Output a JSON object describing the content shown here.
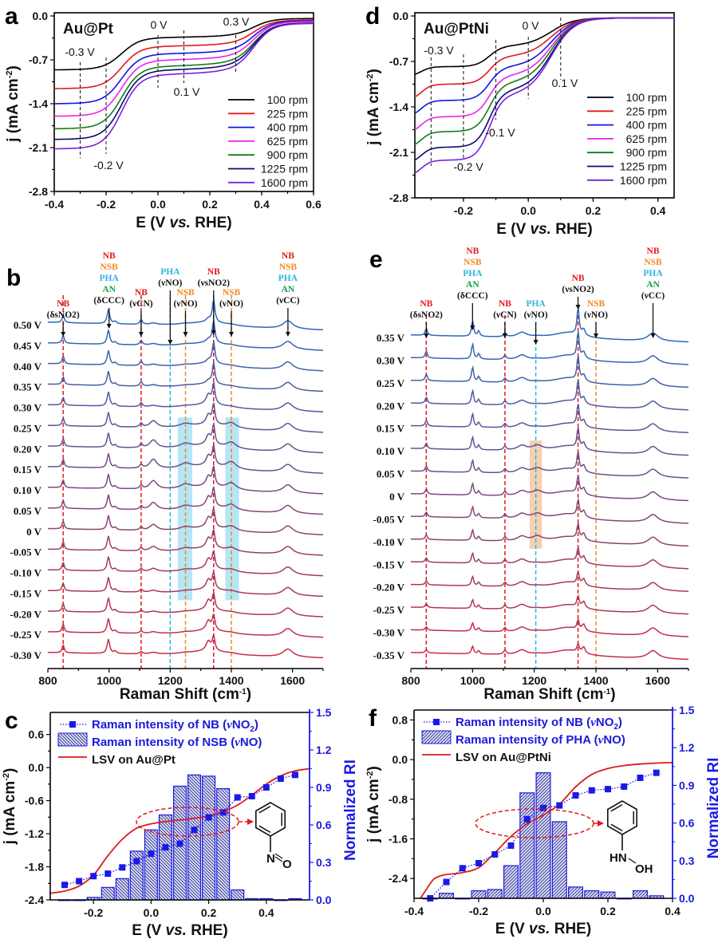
{
  "panels": {
    "a": {
      "label": "a",
      "sample": "Au@Pt"
    },
    "b": {
      "label": "b"
    },
    "c": {
      "label": "c"
    },
    "d": {
      "label": "d",
      "sample": "Au@PtNi"
    },
    "e": {
      "label": "e"
    },
    "f": {
      "label": "f"
    }
  },
  "chart_data": [
    {
      "id": "a",
      "type": "line",
      "title": "Au@Pt",
      "xlabel": "E (V vs. RHE)",
      "ylabel": "j (mA cm-2)",
      "xlim": [
        -0.4,
        0.6
      ],
      "ylim": [
        -2.8,
        0.0
      ],
      "xticks": [
        "-0.4",
        "-0.2",
        "0.0",
        "0.2",
        "0.4",
        "0.6"
      ],
      "xtick_values": [
        -0.4,
        -0.2,
        0.0,
        0.2,
        0.4,
        0.6
      ],
      "yticks": [
        "0.0",
        "-0.7",
        "-1.4",
        "-2.1",
        "-2.8"
      ],
      "ytick_values": [
        0.0,
        -0.7,
        -1.4,
        -2.1,
        -2.8
      ],
      "legend_position": "bottom-right",
      "annotations": [
        {
          "text": "-0.3 V",
          "x": -0.3
        },
        {
          "text": "-0.2 V",
          "x": -0.2
        },
        {
          "text": "0 V",
          "x": 0.0
        },
        {
          "text": "0.1 V",
          "x": 0.1
        },
        {
          "text": "0.3 V",
          "x": 0.3
        }
      ],
      "series": [
        {
          "name": "100 rpm",
          "color": "#000000",
          "plateau1": -0.86,
          "plateau2": -0.36,
          "plateau3": -0.3
        },
        {
          "name": "225 rpm",
          "color": "#e0191f",
          "plateau1": -1.16,
          "plateau2": -0.5,
          "plateau3": -0.4
        },
        {
          "name": "400 rpm",
          "color": "#1414e6",
          "plateau1": -1.4,
          "plateau2": -0.62,
          "plateau3": -0.5
        },
        {
          "name": "625 rpm",
          "color": "#ee22ee",
          "plateau1": -1.6,
          "plateau2": -0.72,
          "plateau3": -0.58
        },
        {
          "name": "900 rpm",
          "color": "#147d14",
          "plateau1": -1.8,
          "plateau2": -0.82,
          "plateau3": -0.64
        },
        {
          "name": "1225 rpm",
          "color": "#0a0a6e",
          "plateau1": -1.97,
          "plateau2": -0.88,
          "plateau3": -0.7
        },
        {
          "name": "1600 rpm",
          "color": "#7a1fe0",
          "plateau1": -2.12,
          "plateau2": -0.95,
          "plateau3": -0.76
        }
      ]
    },
    {
      "id": "d",
      "type": "line",
      "title": "Au@PtNi",
      "xlabel": "E (V vs. RHE)",
      "ylabel": "j (mA cm-2)",
      "xlim": [
        -0.35,
        0.45
      ],
      "ylim": [
        -2.8,
        0.0
      ],
      "xticks": [
        "-0.2",
        "0.0",
        "0.2",
        "0.4"
      ],
      "xtick_values": [
        -0.2,
        0.0,
        0.2,
        0.4
      ],
      "yticks": [
        "0.0",
        "-0.7",
        "-1.4",
        "-2.1",
        "-2.8"
      ],
      "ytick_values": [
        0.0,
        -0.7,
        -1.4,
        -2.1,
        -2.8
      ],
      "legend_position": "bottom-right",
      "annotations": [
        {
          "text": "-0.3 V",
          "x": -0.3
        },
        {
          "text": "-0.2 V",
          "x": -0.2
        },
        {
          "text": "-0.1 V",
          "x": -0.1
        },
        {
          "text": "0 V",
          "x": 0.0
        },
        {
          "text": "0.1 V",
          "x": 0.1
        }
      ],
      "series": [
        {
          "name": "100 rpm",
          "color": "#000000",
          "plateau1": -0.78,
          "plateau2": -0.46
        },
        {
          "name": "225 rpm",
          "color": "#e0191f",
          "plateau1": -1.05,
          "plateau2": -0.62
        },
        {
          "name": "400 rpm",
          "color": "#1414e6",
          "plateau1": -1.3,
          "plateau2": -0.78
        },
        {
          "name": "625 rpm",
          "color": "#ee22ee",
          "plateau1": -1.55,
          "plateau2": -0.92
        },
        {
          "name": "900 rpm",
          "color": "#147d14",
          "plateau1": -1.78,
          "plateau2": -1.03
        },
        {
          "name": "1225 rpm",
          "color": "#0a0a6e",
          "plateau1": -2.02,
          "plateau2": -1.15
        },
        {
          "name": "1600 rpm",
          "color": "#7a1fe0",
          "plateau1": -2.22,
          "plateau2": -1.22
        }
      ]
    },
    {
      "id": "b",
      "type": "line",
      "title": "",
      "xlabel": "Raman Shift (cm-1)",
      "ylabel": "",
      "xlim": [
        800,
        1700
      ],
      "xticks": [
        "800",
        "1000",
        "1200",
        "1400",
        "1600"
      ],
      "xtick_values": [
        800,
        1000,
        1200,
        1400,
        1600
      ],
      "potentials": [
        "0.50 V",
        "0.45 V",
        "0.40 V",
        "0.35 V",
        "0.30 V",
        "0.25 V",
        "0.20 V",
        "0.15 V",
        "0.10 V",
        "0.05 V",
        "0 V",
        "-0.05 V",
        "-0.10 V",
        "-0.15 V",
        "-0.20 V",
        "-0.25 V",
        "-0.30 V"
      ],
      "peak_markers": [
        {
          "x": 850,
          "labels": [
            {
              "t": "NB",
              "c": "red"
            }
          ],
          "mode": "(δsNO2)",
          "line": "red"
        },
        {
          "x": 1000,
          "labels": [
            {
              "t": "NB",
              "c": "red"
            },
            {
              "t": "NSB",
              "c": "orange"
            },
            {
              "t": "PHA",
              "c": "cyan"
            },
            {
              "t": "AN",
              "c": "green"
            }
          ],
          "mode": "(δCCC)",
          "line": ""
        },
        {
          "x": 1105,
          "labels": [
            {
              "t": "NB",
              "c": "red"
            }
          ],
          "mode": "(νCN)",
          "line": "red"
        },
        {
          "x": 1200,
          "labels": [
            {
              "t": "PHA",
              "c": "cyan"
            }
          ],
          "mode": "(νNO)",
          "line": "cyan"
        },
        {
          "x": 1250,
          "labels": [
            {
              "t": "NSB",
              "c": "orange"
            }
          ],
          "mode": "(νNO)",
          "line": "orange"
        },
        {
          "x": 1342,
          "labels": [
            {
              "t": "NB",
              "c": "red"
            }
          ],
          "mode": "(νsNO2)",
          "line": "red"
        },
        {
          "x": 1400,
          "labels": [
            {
              "t": "NSB",
              "c": "orange"
            }
          ],
          "mode": "(νNO)",
          "line": "orange"
        },
        {
          "x": 1585,
          "labels": [
            {
              "t": "NB",
              "c": "red"
            },
            {
              "t": "NSB",
              "c": "orange"
            },
            {
              "t": "PHA",
              "c": "cyan"
            },
            {
              "t": "AN",
              "c": "green"
            }
          ],
          "mode": "(νCC)",
          "line": ""
        }
      ],
      "highlights": [
        {
          "x0": 1225,
          "x1": 1272,
          "from": "0.25 V",
          "to": "-0.15 V",
          "color": "#a8e2f5"
        },
        {
          "x0": 1380,
          "x1": 1425,
          "from": "0.25 V",
          "to": "-0.15 V",
          "color": "#a8e2f5"
        }
      ]
    },
    {
      "id": "e",
      "type": "line",
      "title": "",
      "xlabel": "Raman Shift (cm-1)",
      "ylabel": "",
      "xlim": [
        800,
        1700
      ],
      "xticks": [
        "800",
        "1000",
        "1200",
        "1400",
        "1600"
      ],
      "xtick_values": [
        800,
        1000,
        1200,
        1400,
        1600
      ],
      "potentials": [
        "0.35 V",
        "0.30 V",
        "0.25 V",
        "0.20 V",
        "0.15 V",
        "0.10 V",
        "0.05 V",
        "0 V",
        "-0.05 V",
        "-0.10 V",
        "-0.15 V",
        "-0.20 V",
        "-0.25 V",
        "-0.30 V",
        "-0.35 V"
      ],
      "peak_markers": [
        {
          "x": 850,
          "labels": [
            {
              "t": "NB",
              "c": "red"
            }
          ],
          "mode": "(δsNO2)",
          "line": "red"
        },
        {
          "x": 1000,
          "labels": [
            {
              "t": "NB",
              "c": "red"
            },
            {
              "t": "NSB",
              "c": "orange"
            },
            {
              "t": "PHA",
              "c": "cyan"
            },
            {
              "t": "AN",
              "c": "green"
            }
          ],
          "mode": "(δCCC)",
          "line": ""
        },
        {
          "x": 1105,
          "labels": [
            {
              "t": "NB",
              "c": "red"
            }
          ],
          "mode": "(νCN)",
          "line": "red"
        },
        {
          "x": 1205,
          "labels": [
            {
              "t": "PHA",
              "c": "cyan"
            }
          ],
          "mode": "(νNO)",
          "line": "cyan"
        },
        {
          "x": 1342,
          "labels": [
            {
              "t": "NB",
              "c": "red"
            }
          ],
          "mode": "(νsNO2)",
          "line": "red"
        },
        {
          "x": 1400,
          "labels": [
            {
              "t": "NSB",
              "c": "orange"
            }
          ],
          "mode": "(νNO)",
          "line": "orange"
        },
        {
          "x": 1585,
          "labels": [
            {
              "t": "NB",
              "c": "red"
            },
            {
              "t": "NSB",
              "c": "orange"
            },
            {
              "t": "PHA",
              "c": "cyan"
            },
            {
              "t": "AN",
              "c": "green"
            }
          ],
          "mode": "(νCC)",
          "line": ""
        }
      ],
      "highlights": [
        {
          "x0": 1185,
          "x1": 1225,
          "from": "0.10 V",
          "to": "-0.10 V",
          "color": "#f5c8a5"
        }
      ]
    },
    {
      "id": "c",
      "type": "bar",
      "title": "",
      "xlabel": "E (V vs. RHE)",
      "ylabel": "j (mA cm-2)",
      "y2label": "Normalized RI",
      "xlim": [
        -0.35,
        0.55
      ],
      "ylim": [
        -2.4,
        1.0
      ],
      "y2lim": [
        0.0,
        1.5
      ],
      "xticks": [
        "-0.2",
        "0.0",
        "0.2",
        "0.4"
      ],
      "xtick_values": [
        -0.2,
        0.0,
        0.2,
        0.4
      ],
      "yticks": [
        "0.6",
        "0.0",
        "-0.6",
        "-1.2",
        "-1.8",
        "-2.4"
      ],
      "ytick_values": [
        0.6,
        0.0,
        -0.6,
        -1.2,
        -1.8,
        -2.4
      ],
      "y2ticks": [
        "0.0",
        "0.3",
        "0.6",
        "0.9",
        "1.2",
        "1.5"
      ],
      "y2tick_values": [
        0.0,
        0.3,
        0.6,
        0.9,
        1.2,
        1.5
      ],
      "legend": [
        "Raman intensity of NB (νNO2)",
        "Raman intensity of NSB (νNO)",
        "LSV on Au@Pt"
      ],
      "legend_position": "top-left",
      "molecule": "nitrosobenzene",
      "molecule_label": "N=O",
      "x": [
        -0.3,
        -0.25,
        -0.2,
        -0.15,
        -0.1,
        -0.05,
        0.0,
        0.05,
        0.1,
        0.15,
        0.2,
        0.25,
        0.3,
        0.35,
        0.4,
        0.45,
        0.5
      ],
      "series": [
        {
          "name": "Raman intensity of NB (νNO2)",
          "kind": "dotted-line-square",
          "axis": "right",
          "color": "#1a1ae6",
          "values": [
            0.12,
            0.15,
            0.19,
            0.21,
            0.26,
            0.31,
            0.37,
            0.42,
            0.45,
            0.56,
            0.66,
            0.7,
            0.82,
            0.83,
            0.9,
            0.97,
            1.0
          ]
        },
        {
          "name": "Raman intensity of NSB (νNO)",
          "kind": "hatched-bar",
          "axis": "right",
          "color": "#1a1ae6",
          "values": [
            0.0,
            0.0,
            0.02,
            0.1,
            0.17,
            0.39,
            0.56,
            0.68,
            0.91,
            1.0,
            0.99,
            0.89,
            0.08,
            0.01,
            0.01,
            0.0,
            0.01
          ]
        },
        {
          "name": "LSV on Au@Pt",
          "kind": "line",
          "axis": "left",
          "color": "#d81e1e",
          "x": [
            -0.35,
            -0.3,
            -0.25,
            -0.2,
            -0.15,
            -0.1,
            -0.05,
            0.0,
            0.05,
            0.1,
            0.15,
            0.2,
            0.25,
            0.3,
            0.35,
            0.4,
            0.45,
            0.5,
            0.55
          ],
          "values": [
            -2.28,
            -2.24,
            -2.15,
            -1.95,
            -1.6,
            -1.3,
            -1.1,
            -1.02,
            -0.98,
            -0.95,
            -0.92,
            -0.88,
            -0.8,
            -0.68,
            -0.5,
            -0.3,
            -0.15,
            -0.06,
            -0.02
          ]
        }
      ]
    },
    {
      "id": "f",
      "type": "bar",
      "title": "",
      "xlabel": "E (V vs. RHE)",
      "ylabel": "j (mA cm-2)",
      "y2label": "Normalized RI",
      "xlim": [
        -0.4,
        0.4
      ],
      "ylim": [
        -2.8,
        1.0
      ],
      "y2lim": [
        0.0,
        1.5
      ],
      "xticks": [
        "-0.4",
        "-0.2",
        "0.0",
        "0.2",
        "0.4"
      ],
      "xtick_values": [
        -0.4,
        -0.2,
        0.0,
        0.2,
        0.4
      ],
      "yticks": [
        "0.8",
        "0.0",
        "-0.8",
        "-1.6",
        "-2.4"
      ],
      "ytick_values": [
        0.8,
        0.0,
        -0.8,
        -1.6,
        -2.4
      ],
      "y2ticks": [
        "0.0",
        "0.3",
        "0.6",
        "0.9",
        "1.2",
        "1.5"
      ],
      "y2tick_values": [
        0.0,
        0.3,
        0.6,
        0.9,
        1.2,
        1.5
      ],
      "legend": [
        "Raman intensity of NB (νNO2)",
        "Raman intensity of PHA (νNO)",
        "LSV on Au@PtNi"
      ],
      "legend_position": "top-left",
      "molecule": "phenylhydroxylamine",
      "molecule_label": "HN-OH",
      "x": [
        -0.35,
        -0.3,
        -0.25,
        -0.2,
        -0.15,
        -0.1,
        -0.05,
        0.0,
        0.05,
        0.1,
        0.15,
        0.2,
        0.25,
        0.3,
        0.35
      ],
      "series": [
        {
          "name": "Raman intensity of NB (νNO2)",
          "kind": "dotted-line-square",
          "axis": "right",
          "color": "#1a1ae6",
          "values": [
            0.0,
            0.13,
            0.24,
            0.28,
            0.35,
            0.42,
            0.63,
            0.72,
            0.74,
            0.82,
            0.86,
            0.87,
            0.89,
            0.96,
            1.0
          ]
        },
        {
          "name": "Raman intensity of PHA (νNO)",
          "kind": "hatched-bar",
          "axis": "right",
          "color": "#1a1ae6",
          "values": [
            0.0,
            0.04,
            0.0,
            0.06,
            0.07,
            0.26,
            0.84,
            1.0,
            0.61,
            0.09,
            0.06,
            0.05,
            0.0,
            0.06,
            0.02
          ]
        },
        {
          "name": "LSV on Au@PtNi",
          "kind": "line",
          "axis": "left",
          "color": "#d81e1e",
          "x": [
            -0.38,
            -0.36,
            -0.34,
            -0.32,
            -0.3,
            -0.25,
            -0.2,
            -0.15,
            -0.1,
            -0.05,
            0.0,
            0.05,
            0.1,
            0.15,
            0.2,
            0.25,
            0.3,
            0.35,
            0.4
          ],
          "values": [
            -2.8,
            -2.6,
            -2.42,
            -2.35,
            -2.32,
            -2.28,
            -2.18,
            -1.88,
            -1.55,
            -1.3,
            -1.12,
            -0.9,
            -0.55,
            -0.3,
            -0.18,
            -0.12,
            -0.09,
            -0.07,
            -0.06
          ]
        }
      ]
    }
  ]
}
